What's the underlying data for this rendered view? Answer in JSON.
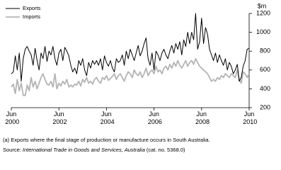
{
  "chart_data": {
    "type": "line",
    "y_unit_label": "$m",
    "x": [
      "Jun 2000",
      "Jul 2000",
      "Aug 2000",
      "Sep 2000",
      "Oct 2000",
      "Nov 2000",
      "Dec 2000",
      "Jan 2001",
      "Feb 2001",
      "Mar 2001",
      "Apr 2001",
      "May 2001",
      "Jun 2001",
      "Jul 2001",
      "Aug 2001",
      "Sep 2001",
      "Oct 2001",
      "Nov 2001",
      "Dec 2001",
      "Jan 2002",
      "Feb 2002",
      "Mar 2002",
      "Apr 2002",
      "May 2002",
      "Jun 2002",
      "Jul 2002",
      "Aug 2002",
      "Sep 2002",
      "Oct 2002",
      "Nov 2002",
      "Dec 2002",
      "Jan 2003",
      "Feb 2003",
      "Mar 2003",
      "Apr 2003",
      "May 2003",
      "Jun 2003",
      "Jul 2003",
      "Aug 2003",
      "Sep 2003",
      "Oct 2003",
      "Nov 2003",
      "Dec 2003",
      "Jan 2004",
      "Feb 2004",
      "Mar 2004",
      "Apr 2004",
      "May 2004",
      "Jun 2004",
      "Jul 2004",
      "Aug 2004",
      "Sep 2004",
      "Oct 2004",
      "Nov 2004",
      "Dec 2004",
      "Jan 2005",
      "Feb 2005",
      "Mar 2005",
      "Apr 2005",
      "May 2005",
      "Jun 2005",
      "Jul 2005",
      "Aug 2005",
      "Sep 2005",
      "Oct 2005",
      "Nov 2005",
      "Dec 2005",
      "Jan 2006",
      "Feb 2006",
      "Mar 2006",
      "Apr 2006",
      "May 2006",
      "Jun 2006",
      "Jul 2006",
      "Aug 2006",
      "Sep 2006",
      "Oct 2006",
      "Nov 2006",
      "Dec 2006",
      "Jan 2007",
      "Feb 2007",
      "Mar 2007",
      "Apr 2007",
      "May 2007",
      "Jun 2007",
      "Jul 2007",
      "Aug 2007",
      "Sep 2007",
      "Oct 2007",
      "Nov 2007",
      "Dec 2007",
      "Jan 2008",
      "Feb 2008",
      "Mar 2008",
      "Apr 2008",
      "May 2008",
      "Jun 2008",
      "Jul 2008",
      "Aug 2008",
      "Sep 2008",
      "Oct 2008",
      "Nov 2008",
      "Dec 2008",
      "Jan 2009",
      "Feb 2009",
      "Mar 2009",
      "Apr 2009",
      "May 2009",
      "Jun 2009",
      "Jul 2009",
      "Aug 2009",
      "Sep 2009",
      "Oct 2009",
      "Nov 2009",
      "Dec 2009",
      "Jan 2010",
      "Feb 2010",
      "Mar 2010",
      "Apr 2010",
      "May 2010",
      "Jun 2010"
    ],
    "series": [
      {
        "name": "Exports",
        "color": "#000000",
        "values": [
          560,
          580,
          750,
          600,
          780,
          480,
          720,
          820,
          850,
          800,
          760,
          650,
          830,
          700,
          600,
          780,
          720,
          850,
          690,
          800,
          760,
          850,
          720,
          650,
          780,
          820,
          700,
          840,
          800,
          750,
          650,
          580,
          620,
          560,
          700,
          650,
          720,
          600,
          540,
          680,
          620,
          700,
          660,
          700,
          650,
          720,
          600,
          750,
          680,
          640,
          700,
          620,
          580,
          720,
          680,
          700,
          760,
          650,
          800,
          720,
          820,
          760,
          700,
          780,
          860,
          750,
          800,
          880,
          940,
          720,
          650,
          780,
          600,
          800,
          760,
          700,
          780,
          820,
          760,
          720,
          800,
          860,
          780,
          880,
          820,
          900,
          760,
          920,
          850,
          1000,
          880,
          1000,
          920,
          1200,
          820,
          900,
          1150,
          880,
          1050,
          980,
          820,
          760,
          700,
          780,
          680,
          760,
          700,
          650,
          720,
          600,
          680,
          640,
          560,
          600,
          660,
          480,
          520,
          640,
          700,
          820,
          830
        ]
      },
      {
        "name": "Imports",
        "color": "#b4b4b4",
        "values": [
          420,
          450,
          350,
          500,
          380,
          460,
          330,
          330,
          440,
          380,
          520,
          420,
          480,
          400,
          460,
          520,
          560,
          500,
          450,
          440,
          480,
          420,
          560,
          400,
          460,
          430,
          480,
          450,
          500,
          420,
          440,
          420,
          450,
          440,
          480,
          430,
          500,
          470,
          520,
          460,
          480,
          450,
          500,
          520,
          480,
          460,
          520,
          500,
          540,
          490,
          510,
          530,
          560,
          500,
          540,
          560,
          520,
          480,
          540,
          580,
          560,
          520,
          600,
          560,
          540,
          580,
          520,
          560,
          620,
          540,
          580,
          600,
          560,
          640,
          580,
          600,
          560,
          620,
          640,
          600,
          660,
          620,
          680,
          640,
          700,
          650,
          620,
          660,
          700,
          640,
          680,
          700,
          660,
          720,
          680,
          640,
          620,
          600,
          580,
          560,
          520,
          480,
          500,
          480,
          520,
          500,
          540,
          520,
          560,
          540,
          520,
          560,
          540,
          520,
          600,
          500,
          460,
          580,
          560,
          520,
          560
        ]
      }
    ],
    "xticks": [
      "Jun 2000",
      "Jun 2002",
      "Jun 2004",
      "Jun 2006",
      "Jun 2008",
      "Jun 2010"
    ],
    "ylim": [
      200,
      1200
    ],
    "yticks": [
      200,
      400,
      600,
      800,
      1000,
      1200
    ],
    "y_axis_side": "right",
    "legend": "top-left",
    "footnote": "(a) Exports where the final stage of production or manufacture occurs in South Australia.",
    "source": {
      "label": "Source:",
      "title": "International Trade in Goods and Services, Australia",
      "ref": "(cat. no. 5368.0)"
    }
  }
}
